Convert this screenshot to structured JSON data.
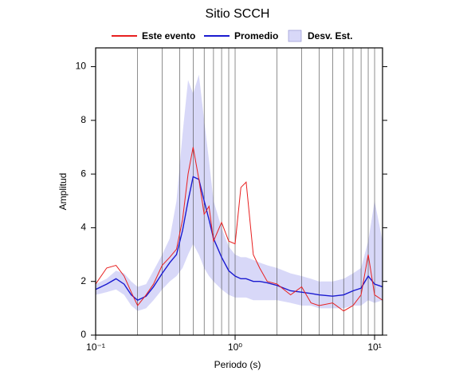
{
  "chart_data": {
    "type": "line",
    "title": "Sitio SCCH",
    "x_label": "Periodo (s)",
    "y_label": "Amplitud",
    "log_x": true,
    "xlim": [
      0.1,
      11.4
    ],
    "ylim": [
      0,
      10.7
    ],
    "xticks": [
      {
        "value": 0.1,
        "label": "10⁻¹"
      },
      {
        "value": 1,
        "label": "10⁰"
      },
      {
        "value": 10,
        "label": "10¹"
      }
    ],
    "yticks": [
      0,
      2,
      4,
      6,
      8,
      10
    ],
    "xgrid": [
      0.2,
      0.3,
      0.4,
      0.5,
      0.6,
      0.7,
      0.8,
      0.9,
      1,
      2,
      3,
      4,
      5,
      6,
      7,
      8,
      9,
      10
    ],
    "x": [
      0.1,
      0.12,
      0.14,
      0.16,
      0.18,
      0.2,
      0.23,
      0.26,
      0.3,
      0.34,
      0.38,
      0.42,
      0.46,
      0.5,
      0.55,
      0.6,
      0.65,
      0.7,
      0.8,
      0.9,
      1.0,
      1.1,
      1.2,
      1.35,
      1.5,
      1.7,
      2.0,
      2.5,
      3,
      3.5,
      4,
      5,
      6,
      7,
      8,
      9,
      10,
      11.4
    ],
    "series": [
      {
        "name": "Este evento",
        "color": "#e82020",
        "values": [
          1.9,
          2.5,
          2.6,
          2.2,
          1.6,
          1.1,
          1.5,
          1.9,
          2.6,
          2.9,
          3.2,
          4.3,
          6.0,
          7.0,
          5.8,
          4.5,
          4.8,
          3.5,
          4.2,
          3.5,
          3.4,
          5.5,
          5.7,
          3.0,
          2.5,
          2.0,
          1.9,
          1.5,
          1.8,
          1.2,
          1.1,
          1.2,
          0.9,
          1.1,
          1.5,
          3.0,
          1.5,
          1.3
        ]
      },
      {
        "name": "Promedio",
        "color": "#1a1ad0",
        "values": [
          1.7,
          1.9,
          2.1,
          1.9,
          1.5,
          1.3,
          1.45,
          1.8,
          2.3,
          2.7,
          3.0,
          3.9,
          5.0,
          5.9,
          5.8,
          5.0,
          4.3,
          3.6,
          2.9,
          2.4,
          2.2,
          2.1,
          2.1,
          2.0,
          2.0,
          1.95,
          1.85,
          1.65,
          1.6,
          1.55,
          1.5,
          1.45,
          1.5,
          1.65,
          1.75,
          2.2,
          1.9,
          1.8
        ]
      },
      {
        "name": "Desv. Est.",
        "color": "#d8d8f8",
        "upper": [
          1.9,
          2.1,
          2.4,
          2.3,
          2.0,
          1.8,
          1.9,
          2.4,
          3.0,
          3.6,
          5.0,
          7.5,
          9.5,
          9.0,
          9.7,
          8.0,
          6.5,
          5.0,
          4.0,
          3.3,
          3.0,
          2.9,
          2.9,
          2.8,
          2.7,
          2.6,
          2.5,
          2.3,
          2.2,
          2.1,
          2.0,
          2.0,
          2.1,
          2.3,
          2.5,
          3.5,
          5.0,
          3.5
        ],
        "lower": [
          1.5,
          1.6,
          1.7,
          1.5,
          1.1,
          0.9,
          1.0,
          1.3,
          1.7,
          2.0,
          2.2,
          2.5,
          3.0,
          3.4,
          3.0,
          2.5,
          2.2,
          2.0,
          1.7,
          1.5,
          1.4,
          1.4,
          1.4,
          1.3,
          1.3,
          1.3,
          1.3,
          1.2,
          1.1,
          1.1,
          1.0,
          1.0,
          1.0,
          1.1,
          1.1,
          1.3,
          1.2,
          1.3
        ]
      }
    ]
  }
}
